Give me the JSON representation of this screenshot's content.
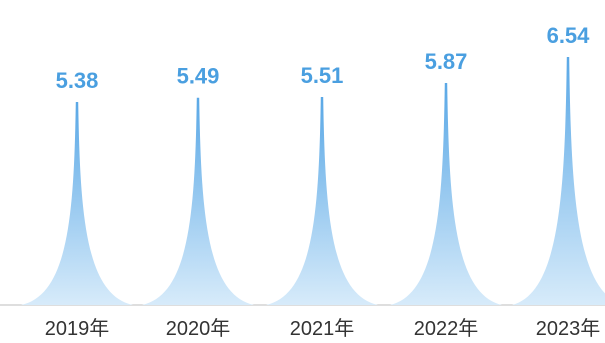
{
  "chart_data": {
    "type": "bar",
    "categories": [
      "2019年",
      "2020年",
      "2021年",
      "2022年",
      "2023年"
    ],
    "values": [
      5.38,
      5.49,
      5.51,
      5.87,
      6.54
    ],
    "data_labels": [
      "5.38",
      "5.49",
      "5.51",
      "5.87",
      "6.54"
    ],
    "title": "",
    "xlabel": "",
    "ylabel": "",
    "grid": false,
    "legend": "none",
    "mark_style": "spike"
  },
  "colors": {
    "label": "#4a9fe0",
    "fill_top": "#5aa8e6",
    "fill_bottom": "#d7ebfa",
    "baseline": "#bcbcbc",
    "category_text": "#333333"
  }
}
